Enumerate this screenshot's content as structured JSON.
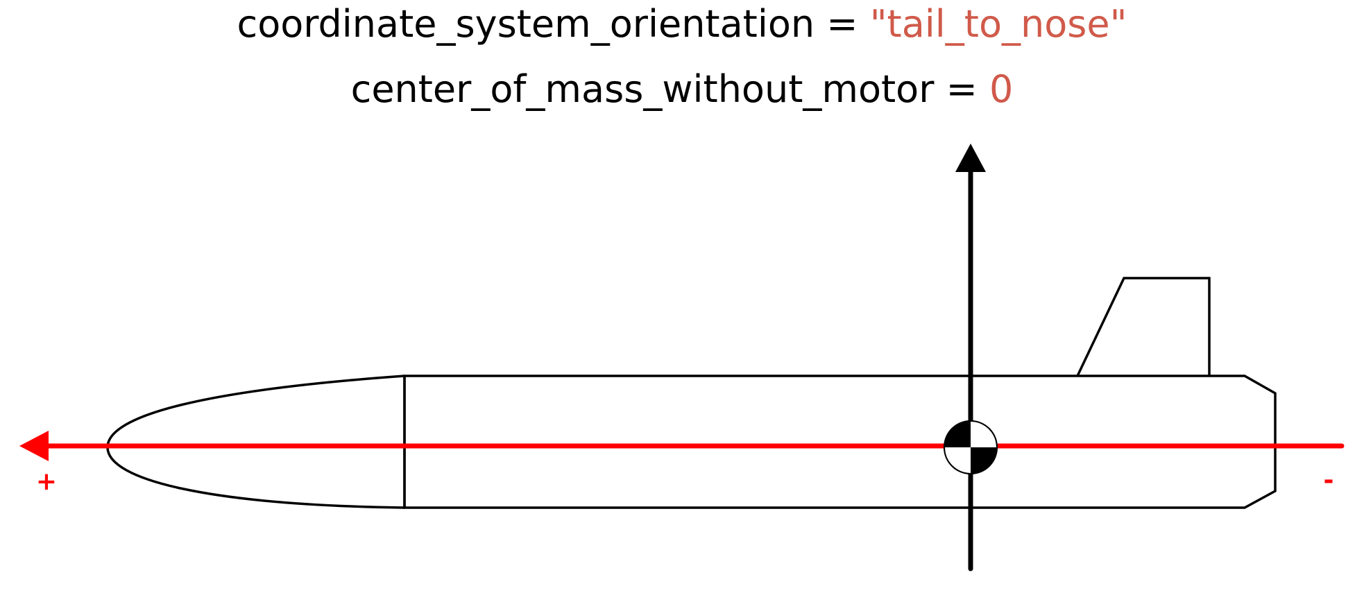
{
  "header": {
    "line1": {
      "name": "coordinate_system_orientation",
      "equals": " = ",
      "value": "\"tail_to_nose\""
    },
    "line2": {
      "name": "center_of_mass_without_motor",
      "equals": " = ",
      "value": "0"
    }
  },
  "axis": {
    "positive_label": "+",
    "negative_label": "-",
    "color": "#ff0000"
  },
  "colors": {
    "value_text": "#d05a4a",
    "outline": "#000000",
    "axis": "#ff0000"
  }
}
